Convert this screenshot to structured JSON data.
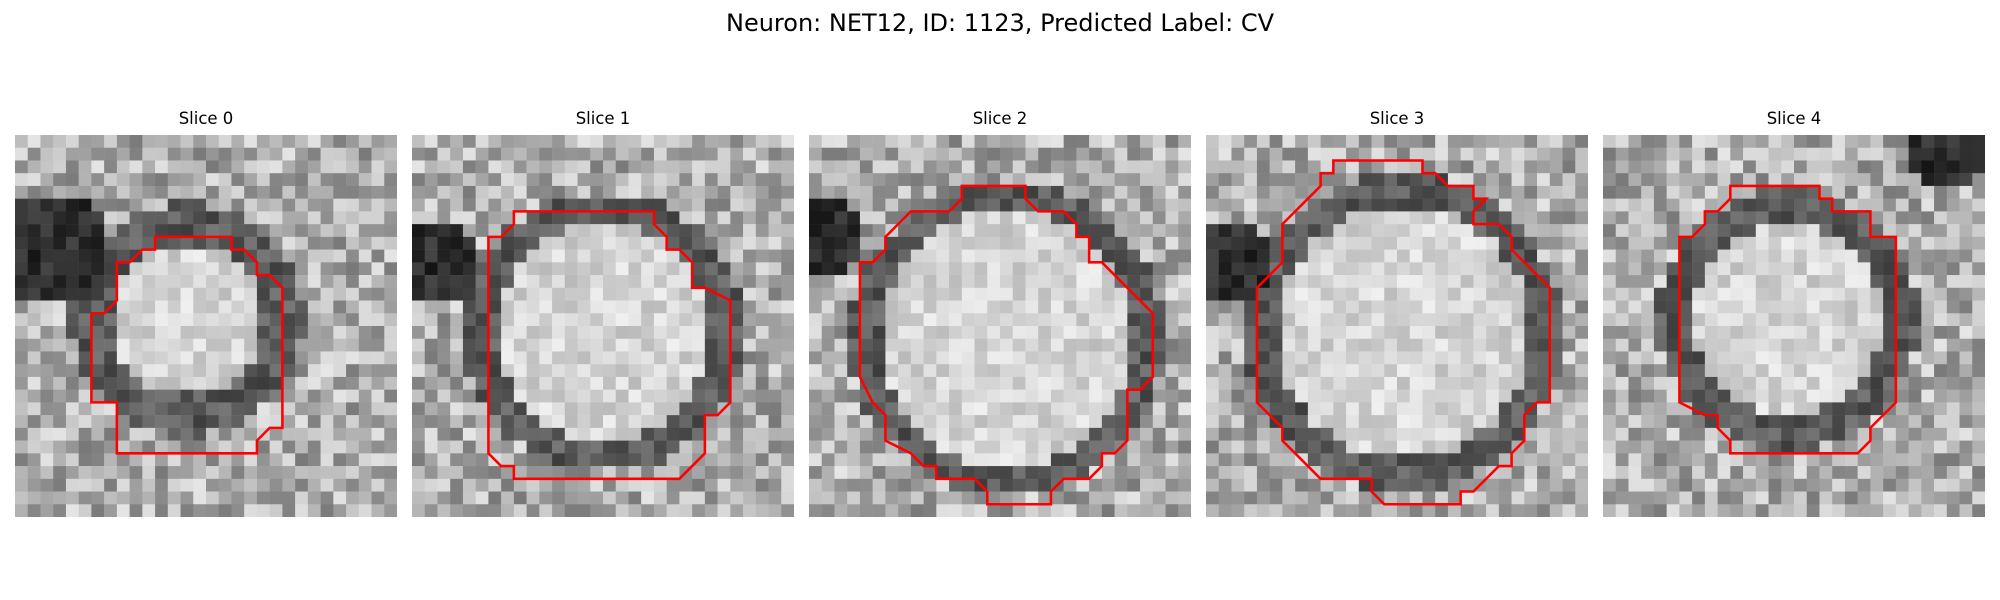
{
  "figure": {
    "title": "Neuron: NET12, ID: 1123, Predicted Label: CV"
  },
  "colors": {
    "contour": "#ff0000",
    "image_dark": "#000000",
    "image_light": "#ffffff"
  },
  "slices": [
    {
      "title": "Slice 0"
    },
    {
      "title": "Slice 1"
    },
    {
      "title": "Slice 2"
    },
    {
      "title": "Slice 3"
    },
    {
      "title": "Slice 4"
    }
  ]
}
